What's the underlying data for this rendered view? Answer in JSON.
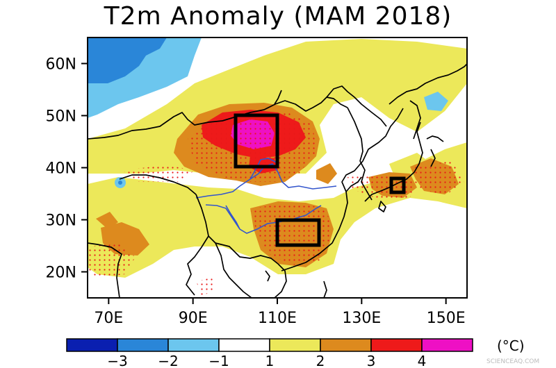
{
  "title": "T2m Anomaly (MAM 2018)",
  "map": {
    "y_axis_labels": [
      "60N",
      "50N",
      "40N",
      "30N",
      "20N"
    ],
    "x_axis_labels": [
      "70E",
      "90E",
      "110E",
      "130E",
      "150E"
    ],
    "lon_range": [
      65,
      155
    ],
    "lat_range": [
      15,
      65
    ]
  },
  "colorbar": {
    "levels": [
      "−3",
      "−2",
      "−1",
      "1",
      "2",
      "3",
      "4"
    ],
    "unit": "(°C)",
    "colors": [
      "#0a1fb0",
      "#2a86d8",
      "#6cc6ee",
      "#ffffff",
      "#ece85a",
      "#dd8a1e",
      "#ee1a1a",
      "#ee10c4"
    ]
  },
  "colors": {
    "warm1": "#ece85a",
    "warm2": "#dd8a1e",
    "warm3": "#ee1a1a",
    "warm4": "#ee10c4",
    "cool1": "#6cc6ee",
    "cool2": "#2a86d8",
    "river": "#3355cc"
  },
  "watermark": "SCIENCEAQ.COM"
}
